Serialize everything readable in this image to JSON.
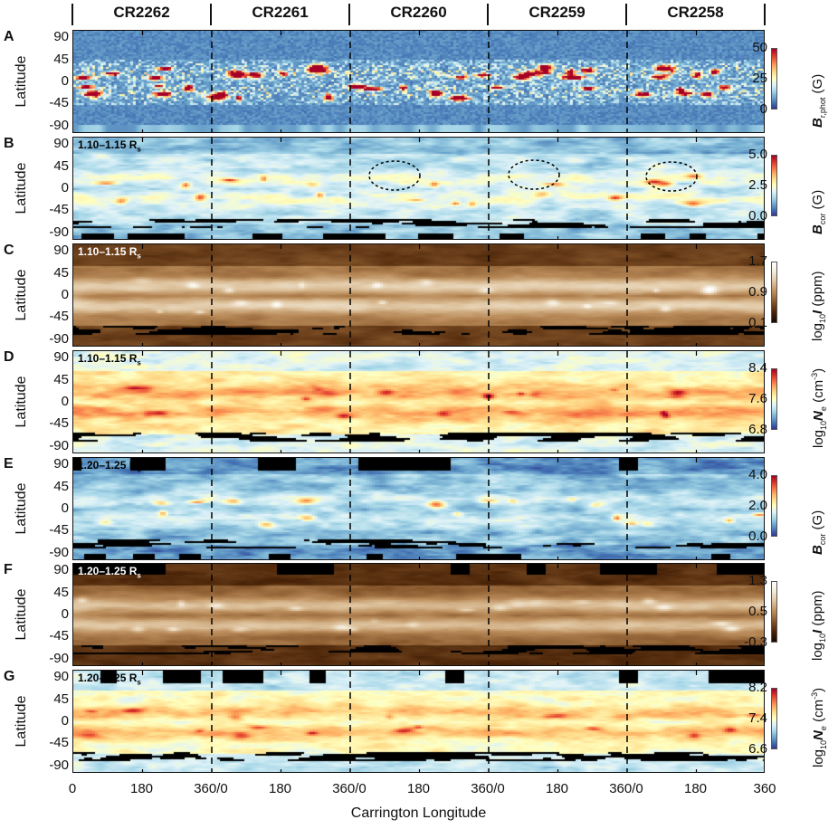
{
  "chart_data": {
    "type": "heatmap",
    "carrington_rotations": [
      "CR2262",
      "CR2261",
      "CR2260",
      "CR2259",
      "CR2258"
    ],
    "xlabel": "Carrington Longitude",
    "x_tick_labels": [
      "0",
      "180",
      "360/0",
      "180",
      "360/0",
      "180",
      "360/0",
      "180",
      "360/0",
      "180",
      "360"
    ],
    "ylabel": "Latitude",
    "y_tick_labels": [
      "90",
      "45",
      "0",
      "-45",
      "-90"
    ],
    "ylim": [
      -90,
      90
    ],
    "panels": [
      {
        "letter": "A",
        "kind": "phot",
        "radius": "",
        "colormap": "RdYlBu_r",
        "colorbar": {
          "prefix": "",
          "prefix_sub": "",
          "var": "B",
          "sub": "r,phot",
          "unit": "(G)",
          "sup": "",
          "unit_end": "",
          "ticks": [
            "50",
            "25",
            "0"
          ],
          "range": [
            0,
            55
          ]
        }
      },
      {
        "letter": "B",
        "kind": "bcor",
        "radius": "1.10–1.15 R",
        "radius_sub": "s",
        "colormap": "RdYlBu_r",
        "colorbar": {
          "prefix": "",
          "prefix_sub": "",
          "var": "B",
          "sub": "cor",
          "unit": "(G)",
          "sup": "",
          "unit_end": "",
          "ticks": [
            "5.0",
            "2.5",
            "0.0"
          ],
          "range": [
            0,
            5.5
          ]
        },
        "annotations": "dotted-ellipses"
      },
      {
        "letter": "C",
        "kind": "int",
        "radius": "1.10–1.15 R",
        "radius_sub": "s",
        "radius_color": "#ffffff",
        "colormap": "copper",
        "colorbar": {
          "prefix": "log",
          "prefix_sub": "10",
          "var": "I",
          "sub": "",
          "unit": "(ppm)",
          "sup": "",
          "unit_end": "",
          "ticks": [
            "1.7",
            "0.9",
            "0.1"
          ],
          "range": [
            0.1,
            1.7
          ]
        }
      },
      {
        "letter": "D",
        "kind": "ne",
        "radius": "1.10–1.15 R",
        "radius_sub": "s",
        "colormap": "RdYlBu_r",
        "colorbar": {
          "prefix": "log",
          "prefix_sub": "10",
          "var": "N",
          "sub": "e",
          "unit": "(cm",
          "sup": "-3",
          "unit_end": ")",
          "ticks": [
            "8.4",
            "7.6",
            "6.8"
          ],
          "range": [
            6.8,
            8.4
          ]
        }
      },
      {
        "letter": "E",
        "kind": "bcor2",
        "radius": "1.20–1.25 R",
        "radius_sub": "s",
        "colormap": "RdYlBu_r",
        "colorbar": {
          "prefix": "",
          "prefix_sub": "",
          "var": "B",
          "sub": "cor",
          "unit": "(G)",
          "sup": "",
          "unit_end": "",
          "ticks": [
            "4.0",
            "2.0",
            "0.0"
          ],
          "range": [
            0,
            4.4
          ]
        }
      },
      {
        "letter": "F",
        "kind": "int2",
        "radius": "1.20–1.25 R",
        "radius_sub": "s",
        "radius_color": "#ffffff",
        "colormap": "copper",
        "colorbar": {
          "prefix": "log",
          "prefix_sub": "10",
          "var": "I",
          "sub": "",
          "unit": "(ppm)",
          "sup": "",
          "unit_end": "",
          "ticks": [
            "1.3",
            "0.5",
            "-0.3"
          ],
          "range": [
            -0.3,
            1.3
          ]
        }
      },
      {
        "letter": "G",
        "kind": "ne2",
        "radius": "1.20–1.25 R",
        "radius_sub": "s",
        "colormap": "RdYlBu_r",
        "colorbar": {
          "prefix": "log",
          "prefix_sub": "10",
          "var": "N",
          "sub": "e",
          "unit": "(cm",
          "sup": "-3",
          "unit_end": ")",
          "ticks": [
            "8.2",
            "7.4",
            "6.6"
          ],
          "range": [
            6.6,
            8.2
          ]
        }
      }
    ],
    "colors": {
      "RdYlBu_r": [
        "#313695",
        "#4575b4",
        "#74add1",
        "#abd9e9",
        "#e0f3f8",
        "#ffffbf",
        "#fee090",
        "#fdae61",
        "#f46d43",
        "#d73027",
        "#a50026"
      ],
      "copper": [
        "#1a0800",
        "#4a2408",
        "#84552a",
        "#b98a58",
        "#dcc09a",
        "#f4ead8",
        "#ffffff"
      ],
      "no_data": "#000000"
    }
  }
}
